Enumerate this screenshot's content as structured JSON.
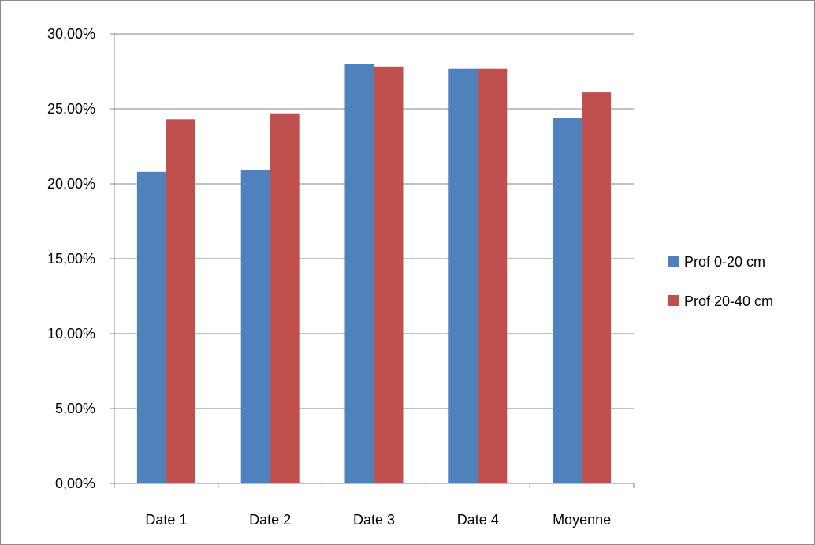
{
  "chart_data": {
    "type": "bar",
    "categories": [
      "Date 1",
      "Date 2",
      "Date 3",
      "Date 4",
      "Moyenne"
    ],
    "series": [
      {
        "name": "Prof 0-20 cm",
        "color": "#4f81bd",
        "values": [
          0.208,
          0.209,
          0.28,
          0.277,
          0.244
        ]
      },
      {
        "name": "Prof 20-40 cm",
        "color": "#c0504d",
        "values": [
          0.243,
          0.247,
          0.278,
          0.277,
          0.261
        ]
      }
    ],
    "ylim": [
      0,
      0.3
    ],
    "yticks": [
      0,
      0.05,
      0.1,
      0.15,
      0.2,
      0.25,
      0.3
    ],
    "ytick_labels": [
      "0,00%",
      "5,00%",
      "10,00%",
      "15,00%",
      "20,00%",
      "25,00%",
      "30,00%"
    ],
    "title": "",
    "xlabel": "",
    "ylabel": "",
    "grid": "horizontal",
    "legend_position": "right"
  }
}
